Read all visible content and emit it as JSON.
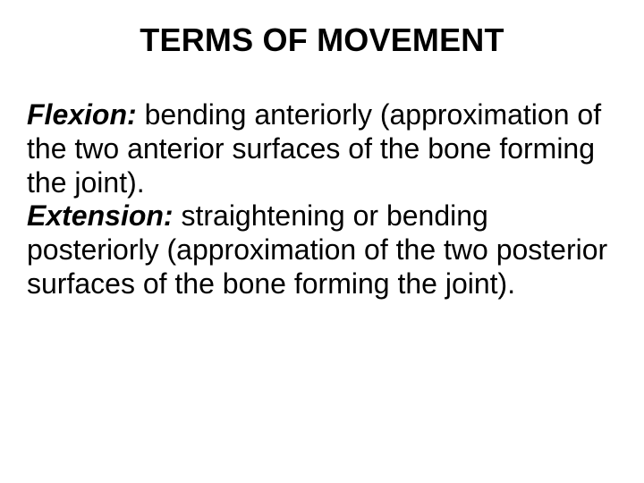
{
  "slide": {
    "title": "TERMS OF MOVEMENT",
    "terms": [
      {
        "label": "Flexion:",
        "definition": " bending anteriorly (approximation of the two anterior surfaces of the bone forming the joint)."
      },
      {
        "label": "Extension:",
        "definition": " straightening or bending posteriorly (approximation of the two posterior surfaces of the bone forming the joint)."
      }
    ],
    "background_color": "#ffffff",
    "text_color": "#000000",
    "title_fontsize": 36,
    "body_fontsize": 32,
    "title_weight": 700,
    "term_weight": 700,
    "term_style": "italic"
  }
}
